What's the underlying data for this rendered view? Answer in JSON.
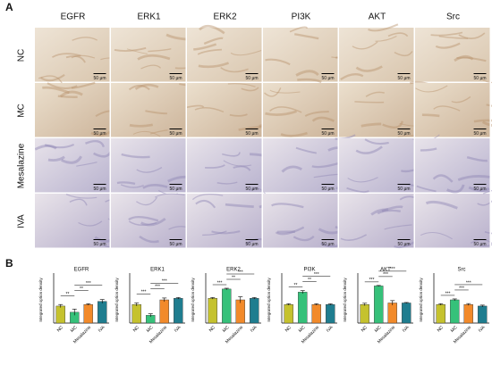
{
  "panel_labels": [
    "A",
    "B"
  ],
  "panel_a": {
    "columns": [
      "EGFR",
      "ERK1",
      "ERK2",
      "PI3K",
      "AKT",
      "Src"
    ],
    "rows": [
      "NC",
      "MC",
      "Mesalazine",
      "IVA"
    ],
    "scale_bar": "50 μm"
  },
  "chart_data": [
    {
      "type": "bar",
      "title": "EGFR",
      "y_label": "Integrated option density",
      "categories": [
        "NC",
        "MC",
        "Mesalazine",
        "IVA"
      ],
      "values": [
        0.11,
        0.07,
        0.12,
        0.14
      ],
      "errors": [
        0.01,
        0.02,
        0.005,
        0.012
      ],
      "colors": [
        "#c5c22e",
        "#36c17a",
        "#f28a2a",
        "#1f7d8f"
      ],
      "ylim": [
        0,
        0.3
      ],
      "significance": [
        {
          "label": "**",
          "groups": [
            "NC",
            "MC"
          ]
        },
        {
          "label": "**",
          "groups": [
            "MC",
            "Mesalazine"
          ]
        },
        {
          "label": "***",
          "groups": [
            "MC",
            "IVA"
          ]
        }
      ]
    },
    {
      "type": "bar",
      "title": "ERK1",
      "y_label": "Integrated option density",
      "categories": [
        "NC",
        "MC",
        "Mesalazine",
        "IVA"
      ],
      "values": [
        0.12,
        0.05,
        0.15,
        0.16
      ],
      "errors": [
        0.01,
        0.01,
        0.012,
        0.005
      ],
      "colors": [
        "#c5c22e",
        "#36c17a",
        "#f28a2a",
        "#1f7d8f"
      ],
      "ylim": [
        0,
        0.3
      ],
      "significance": [
        {
          "label": "***",
          "groups": [
            "NC",
            "MC"
          ]
        },
        {
          "label": "***",
          "groups": [
            "MC",
            "Mesalazine"
          ]
        },
        {
          "label": "***",
          "groups": [
            "MC",
            "IVA"
          ]
        }
      ]
    },
    {
      "type": "bar",
      "title": "ERK2",
      "y_label": "Integrated option density",
      "categories": [
        "NC",
        "MC",
        "Mesalazine",
        "IVA"
      ],
      "values": [
        0.16,
        0.22,
        0.15,
        0.16
      ],
      "errors": [
        0.005,
        0.005,
        0.02,
        0.005
      ],
      "colors": [
        "#c5c22e",
        "#36c17a",
        "#f28a2a",
        "#1f7d8f"
      ],
      "ylim": [
        0,
        0.3
      ],
      "significance": [
        {
          "label": "***",
          "groups": [
            "NC",
            "MC"
          ]
        },
        {
          "label": "**",
          "groups": [
            "MC",
            "Mesalazine"
          ]
        },
        {
          "label": "***",
          "groups": [
            "MC",
            "IVA"
          ]
        }
      ]
    },
    {
      "type": "bar",
      "title": "PI3K",
      "y_label": "Integrated option density",
      "categories": [
        "NC",
        "MC",
        "Mesalazine",
        "IVA"
      ],
      "values": [
        0.12,
        0.2,
        0.12,
        0.12
      ],
      "errors": [
        0.005,
        0.01,
        0.005,
        0.004
      ],
      "colors": [
        "#c5c22e",
        "#36c17a",
        "#f28a2a",
        "#1f7d8f"
      ],
      "ylim": [
        0,
        0.3
      ],
      "significance": [
        {
          "label": "**",
          "groups": [
            "NC",
            "MC"
          ]
        },
        {
          "label": "**",
          "groups": [
            "MC",
            "Mesalazine"
          ]
        },
        {
          "label": "***",
          "groups": [
            "MC",
            "IVA"
          ]
        }
      ]
    },
    {
      "type": "bar",
      "title": "AKT",
      "y_label": "Integrated option density",
      "categories": [
        "NC",
        "MC",
        "Mesalazine",
        "IVA"
      ],
      "values": [
        0.12,
        0.24,
        0.13,
        0.13
      ],
      "errors": [
        0.008,
        0.003,
        0.015,
        0.003
      ],
      "colors": [
        "#c5c22e",
        "#36c17a",
        "#f28a2a",
        "#1f7d8f"
      ],
      "ylim": [
        0,
        0.3
      ],
      "significance": [
        {
          "label": "***",
          "groups": [
            "NC",
            "MC"
          ]
        },
        {
          "label": "***",
          "groups": [
            "MC",
            "Mesalazine"
          ]
        },
        {
          "label": "***",
          "groups": [
            "MC",
            "IVA"
          ]
        }
      ]
    },
    {
      "type": "bar",
      "title": "Src",
      "y_label": "Integrated option density",
      "categories": [
        "NC",
        "MC",
        "Mesalazine",
        "IVA"
      ],
      "values": [
        0.12,
        0.15,
        0.12,
        0.11
      ],
      "errors": [
        0.005,
        0.006,
        0.006,
        0.006
      ],
      "colors": [
        "#c5c22e",
        "#36c17a",
        "#f28a2a",
        "#1f7d8f"
      ],
      "ylim": [
        0,
        0.3
      ],
      "significance": [
        {
          "label": "***",
          "groups": [
            "NC",
            "MC"
          ]
        },
        {
          "label": "***",
          "groups": [
            "MC",
            "Mesalazine"
          ]
        },
        {
          "label": "***",
          "groups": [
            "MC",
            "IVA"
          ]
        }
      ]
    }
  ]
}
